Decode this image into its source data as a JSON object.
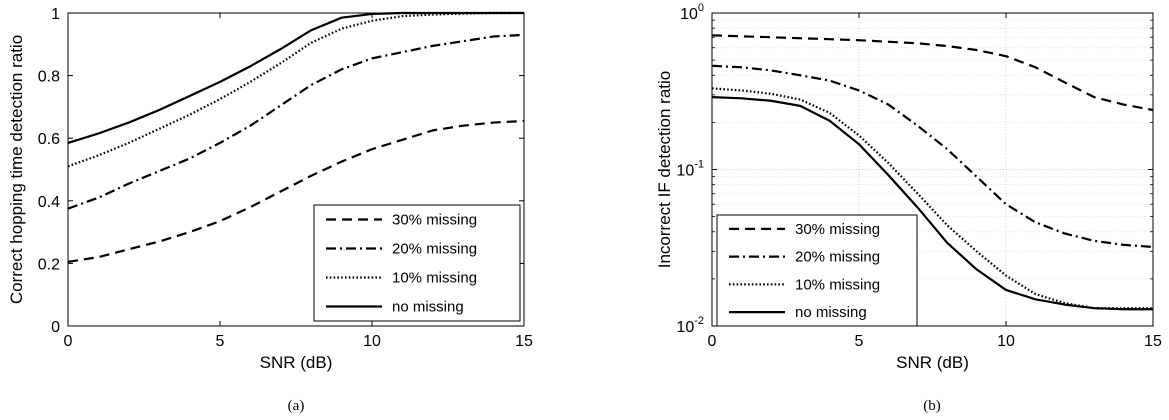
{
  "chart_data": [
    {
      "type": "line",
      "caption": "(a)",
      "xlabel": "SNR (dB)",
      "ylabel": "Correct hopping time detection ratio",
      "xlim": [
        0,
        15
      ],
      "ylim": [
        0,
        1
      ],
      "xticks": [
        0,
        5,
        10,
        15
      ],
      "yticks": [
        0,
        0.2,
        0.4,
        0.6,
        0.8,
        1
      ],
      "ytick_labels": [
        "0",
        "0.2",
        "0.4",
        "0.6",
        "0.8",
        "1"
      ],
      "yscale": "linear",
      "grid": false,
      "legend_position": "bottom-right",
      "x": [
        0,
        1,
        2,
        3,
        4,
        5,
        6,
        7,
        8,
        9,
        10,
        11,
        12,
        13,
        14,
        15
      ],
      "series": [
        {
          "name": "30% missing",
          "style": "dashed",
          "values": [
            0.205,
            0.22,
            0.245,
            0.27,
            0.3,
            0.335,
            0.38,
            0.43,
            0.48,
            0.525,
            0.565,
            0.595,
            0.625,
            0.64,
            0.65,
            0.655
          ]
        },
        {
          "name": "20% missing",
          "style": "dashdot",
          "values": [
            0.375,
            0.41,
            0.455,
            0.495,
            0.535,
            0.585,
            0.64,
            0.705,
            0.77,
            0.82,
            0.855,
            0.875,
            0.895,
            0.91,
            0.925,
            0.93
          ]
        },
        {
          "name": "10% missing",
          "style": "dotted",
          "values": [
            0.51,
            0.545,
            0.585,
            0.63,
            0.675,
            0.725,
            0.78,
            0.84,
            0.905,
            0.95,
            0.975,
            0.99,
            0.995,
            0.998,
            1.0,
            1.0
          ]
        },
        {
          "name": "no missing",
          "style": "solid",
          "values": [
            0.585,
            0.615,
            0.65,
            0.69,
            0.735,
            0.78,
            0.83,
            0.885,
            0.945,
            0.985,
            0.997,
            1.0,
            1.0,
            1.0,
            1.0,
            1.0
          ]
        }
      ]
    },
    {
      "type": "line",
      "caption": "(b)",
      "xlabel": "SNR (dB)",
      "ylabel": "Incorrect IF detection ratio",
      "xlim": [
        0,
        15
      ],
      "ylim": [
        0.01,
        1
      ],
      "xticks": [
        0,
        5,
        10,
        15
      ],
      "yticks": [
        0.01,
        0.1,
        1
      ],
      "ytick_labels": [
        {
          "base": "10",
          "exp": "-2"
        },
        {
          "base": "10",
          "exp": "-1"
        },
        {
          "base": "10",
          "exp": "0"
        }
      ],
      "yscale": "log",
      "grid": true,
      "legend_position": "bottom-left",
      "x": [
        0,
        1,
        2,
        3,
        4,
        5,
        6,
        7,
        8,
        9,
        10,
        11,
        12,
        13,
        14,
        15
      ],
      "series": [
        {
          "name": "30% missing",
          "style": "dashed",
          "values": [
            0.72,
            0.71,
            0.7,
            0.69,
            0.68,
            0.67,
            0.655,
            0.64,
            0.615,
            0.58,
            0.53,
            0.45,
            0.36,
            0.29,
            0.26,
            0.24
          ]
        },
        {
          "name": "20% missing",
          "style": "dashdot",
          "values": [
            0.46,
            0.45,
            0.43,
            0.4,
            0.37,
            0.32,
            0.26,
            0.19,
            0.135,
            0.09,
            0.06,
            0.046,
            0.039,
            0.035,
            0.033,
            0.032
          ]
        },
        {
          "name": "10% missing",
          "style": "dotted",
          "values": [
            0.33,
            0.32,
            0.305,
            0.28,
            0.23,
            0.165,
            0.11,
            0.07,
            0.044,
            0.03,
            0.021,
            0.016,
            0.014,
            0.013,
            0.013,
            0.013
          ]
        },
        {
          "name": "no missing",
          "style": "solid",
          "values": [
            0.29,
            0.285,
            0.275,
            0.255,
            0.205,
            0.145,
            0.092,
            0.057,
            0.034,
            0.023,
            0.017,
            0.0148,
            0.0137,
            0.013,
            0.0128,
            0.0128
          ]
        }
      ]
    }
  ]
}
